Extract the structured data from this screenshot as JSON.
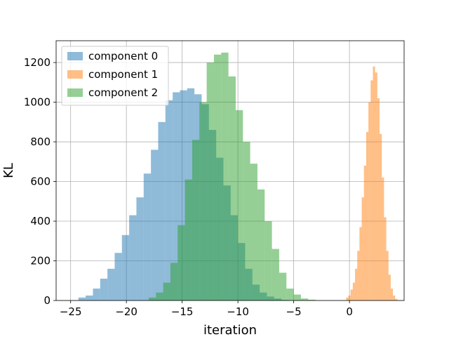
{
  "chart_data": {
    "type": "histogram",
    "title": "",
    "xlabel": "iteration",
    "ylabel": "KL",
    "xlim": [
      -26.3,
      4.9
    ],
    "ylim": [
      0,
      1310
    ],
    "xticks": [
      -25,
      -20,
      -15,
      -10,
      -5,
      0
    ],
    "yticks": [
      0,
      200,
      400,
      600,
      800,
      1000,
      1200
    ],
    "grid": true,
    "legend_position": "top-left",
    "series": [
      {
        "name": "component 0",
        "color": "#1f77b4",
        "opacity": 0.5,
        "bins": [
          [
            -24.3,
            -23.65,
            15
          ],
          [
            -23.65,
            -23.0,
            25
          ],
          [
            -23.0,
            -22.35,
            60
          ],
          [
            -22.35,
            -21.7,
            110
          ],
          [
            -21.7,
            -21.05,
            160
          ],
          [
            -21.05,
            -20.4,
            240
          ],
          [
            -20.4,
            -19.75,
            330
          ],
          [
            -19.75,
            -19.1,
            430
          ],
          [
            -19.1,
            -18.45,
            520
          ],
          [
            -18.45,
            -17.8,
            640
          ],
          [
            -17.8,
            -17.15,
            760
          ],
          [
            -17.15,
            -16.5,
            900
          ],
          [
            -16.5,
            -15.85,
            1010
          ],
          [
            -15.85,
            -15.2,
            1050
          ],
          [
            -15.2,
            -14.55,
            1060
          ],
          [
            -14.55,
            -13.9,
            1070
          ],
          [
            -13.9,
            -13.25,
            1040
          ],
          [
            -13.25,
            -12.6,
            990
          ],
          [
            -12.6,
            -11.95,
            860
          ],
          [
            -11.95,
            -11.3,
            720
          ],
          [
            -11.3,
            -10.65,
            580
          ],
          [
            -10.65,
            -10.0,
            430
          ],
          [
            -10.0,
            -9.35,
            290
          ],
          [
            -9.35,
            -8.7,
            160
          ],
          [
            -8.7,
            -8.05,
            80
          ],
          [
            -8.05,
            -7.4,
            40
          ],
          [
            -7.4,
            -6.75,
            20
          ],
          [
            -6.75,
            -6.1,
            10
          ],
          [
            -6.1,
            -5.45,
            3
          ]
        ]
      },
      {
        "name": "component 1",
        "color": "#ff7f0e",
        "opacity": 0.5,
        "bins": [
          [
            -0.3,
            -0.1,
            15
          ],
          [
            -0.1,
            0.1,
            25
          ],
          [
            0.1,
            0.3,
            55
          ],
          [
            0.3,
            0.5,
            90
          ],
          [
            0.5,
            0.7,
            160
          ],
          [
            0.7,
            0.9,
            250
          ],
          [
            0.9,
            1.1,
            370
          ],
          [
            1.1,
            1.3,
            520
          ],
          [
            1.3,
            1.5,
            680
          ],
          [
            1.5,
            1.7,
            850
          ],
          [
            1.7,
            1.9,
            1000
          ],
          [
            1.9,
            2.1,
            1110
          ],
          [
            2.1,
            2.3,
            1180
          ],
          [
            2.3,
            2.5,
            1150
          ],
          [
            2.5,
            2.7,
            1020
          ],
          [
            2.7,
            2.9,
            840
          ],
          [
            2.9,
            3.1,
            620
          ],
          [
            3.1,
            3.3,
            420
          ],
          [
            3.3,
            3.5,
            250
          ],
          [
            3.5,
            3.7,
            130
          ],
          [
            3.7,
            3.9,
            60
          ],
          [
            3.9,
            4.1,
            25
          ],
          [
            4.1,
            4.3,
            8
          ]
        ]
      },
      {
        "name": "component 2",
        "color": "#2ca02c",
        "opacity": 0.5,
        "bins": [
          [
            -18.0,
            -17.35,
            15
          ],
          [
            -17.35,
            -16.7,
            40
          ],
          [
            -16.7,
            -16.05,
            90
          ],
          [
            -16.05,
            -15.4,
            190
          ],
          [
            -15.4,
            -14.75,
            380
          ],
          [
            -14.75,
            -14.1,
            610
          ],
          [
            -14.1,
            -13.45,
            810
          ],
          [
            -13.45,
            -12.8,
            1000
          ],
          [
            -12.8,
            -12.15,
            1200
          ],
          [
            -12.15,
            -11.5,
            1240
          ],
          [
            -11.5,
            -10.85,
            1250
          ],
          [
            -10.85,
            -10.2,
            1130
          ],
          [
            -10.2,
            -9.55,
            960
          ],
          [
            -9.55,
            -8.9,
            800
          ],
          [
            -8.9,
            -8.25,
            690
          ],
          [
            -8.25,
            -7.6,
            560
          ],
          [
            -7.6,
            -6.95,
            400
          ],
          [
            -6.95,
            -6.3,
            260
          ],
          [
            -6.3,
            -5.65,
            140
          ],
          [
            -5.65,
            -5.0,
            60
          ],
          [
            -5.0,
            -4.35,
            30
          ],
          [
            -4.35,
            -3.7,
            10
          ],
          [
            -3.7,
            -3.05,
            4
          ]
        ]
      }
    ]
  }
}
